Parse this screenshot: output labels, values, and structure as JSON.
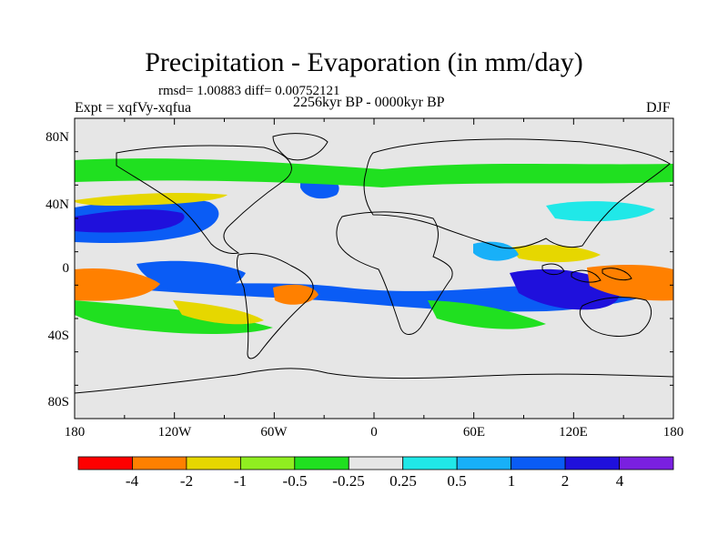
{
  "title": "Precipitation - Evaporation (in mm/day)",
  "stats": "rmsd= 1.00883 diff= 0.00752121",
  "experiment": "Expt = xqfVy-xqfua",
  "period": "2256kyr BP - 0000kyr BP",
  "season": "DJF",
  "lat_labels": [
    "80N",
    "40N",
    "0",
    "40S",
    "80S"
  ],
  "lon_labels": [
    "180",
    "120W",
    "60W",
    "0",
    "60E",
    "120E",
    "180"
  ],
  "colorbar": {
    "colors": [
      "#ff0000",
      "#ff8000",
      "#e6d700",
      "#90ee20",
      "#20e020",
      "#e6e6e6",
      "#20e8e8",
      "#18b0f8",
      "#0a5cf5",
      "#1f10dc",
      "#7a20e0"
    ],
    "labels": [
      "-4",
      "-2",
      "-1",
      "-0.5",
      "-0.25",
      "0.25",
      "0.5",
      "1",
      "2",
      "4"
    ]
  },
  "colors": {
    "ocean_fill": "#e6e6e6",
    "coastline": "#000000"
  }
}
